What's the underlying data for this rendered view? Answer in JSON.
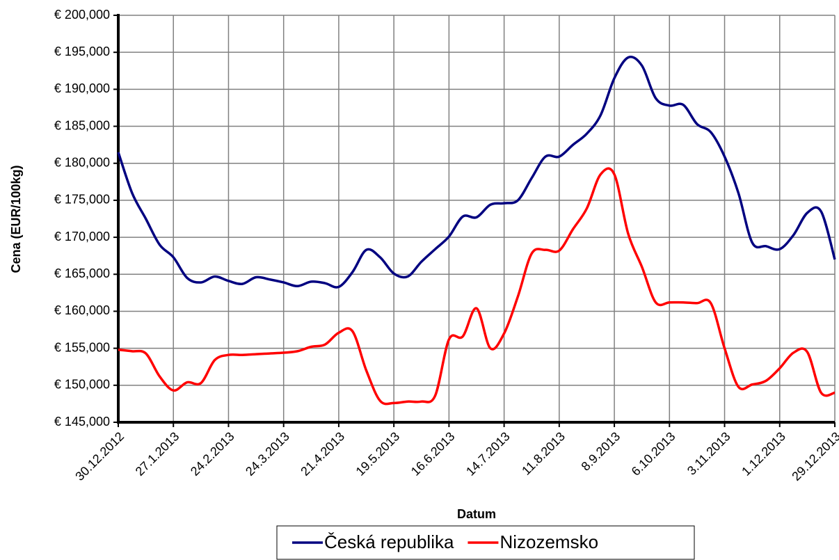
{
  "chart_data": {
    "type": "line",
    "x_label": "Datum",
    "y_label": "Cena (EUR/100kg)",
    "categories": [
      "30.12.2012",
      null,
      null,
      null,
      "27.1.2013",
      null,
      null,
      null,
      "24.2.2013",
      null,
      null,
      null,
      "24.3.2013",
      null,
      null,
      null,
      "21.4.2013",
      null,
      null,
      null,
      "19.5.2013",
      null,
      null,
      null,
      "16.6.2013",
      null,
      null,
      null,
      "14.7.2013",
      null,
      null,
      null,
      "11.8.2013",
      null,
      null,
      null,
      "8.9.2013",
      null,
      null,
      null,
      "6.10.2013",
      null,
      null,
      null,
      "3.11.2013",
      null,
      null,
      null,
      "1.12.2013",
      null,
      null,
      null,
      "29.12.2013"
    ],
    "series": [
      {
        "name": "Česká republika",
        "color": "#000080",
        "values": [
          181.5,
          176,
          172.5,
          169,
          167.3,
          164.5,
          163.9,
          164.7,
          164.1,
          163.7,
          164.6,
          164.3,
          163.9,
          163.4,
          164.0,
          163.8,
          163.3,
          165.3,
          168.3,
          167.3,
          165.1,
          164.7,
          166.7,
          168.4,
          170.1,
          172.8,
          172.7,
          174.4,
          174.6,
          175.0,
          178.0,
          180.9,
          180.9,
          182.5,
          184.0,
          186.5,
          191.5,
          194.3,
          193.2,
          188.8,
          187.8,
          187.9,
          185.3,
          184.2,
          180.9,
          176.0,
          169.3,
          168.8,
          168.4,
          170.3,
          173.3,
          173.5,
          167.0
        ]
      },
      {
        "name": "Nizozemsko",
        "color": "#ff0000",
        "values": [
          154.8,
          154.6,
          154.3,
          151.2,
          149.3,
          150.4,
          150.3,
          153.4,
          154.1,
          154.1,
          154.2,
          154.3,
          154.4,
          154.6,
          155.2,
          155.5,
          157.1,
          157.3,
          152.0,
          147.9,
          147.6,
          147.8,
          147.8,
          148.6,
          156.2,
          156.6,
          160.4,
          155.0,
          157.0,
          162.0,
          167.8,
          168.3,
          168.2,
          171.1,
          173.9,
          178.5,
          178.5,
          170.5,
          166.0,
          161.2,
          161.2,
          161.2,
          161.1,
          161.1,
          155.0,
          149.8,
          150.1,
          150.6,
          152.3,
          154.4,
          154.5,
          149.0,
          149.0
        ]
      }
    ],
    "ylim": [
      145,
      200
    ],
    "yticks": [
      {
        "value": 145,
        "label": "€ 145,000"
      },
      {
        "value": 150,
        "label": "€ 150,000"
      },
      {
        "value": 155,
        "label": "€ 155,000"
      },
      {
        "value": 160,
        "label": "€ 160,000"
      },
      {
        "value": 165,
        "label": "€ 165,000"
      },
      {
        "value": 170,
        "label": "€ 170,000"
      },
      {
        "value": 175,
        "label": "€ 175,000"
      },
      {
        "value": 180,
        "label": "€ 180,000"
      },
      {
        "value": 185,
        "label": "€ 185,000"
      },
      {
        "value": 190,
        "label": "€ 190,000"
      },
      {
        "value": 195,
        "label": "€ 195,000"
      },
      {
        "value": 200,
        "label": "€ 200,000"
      }
    ],
    "grid": true,
    "legend": "bottom"
  }
}
